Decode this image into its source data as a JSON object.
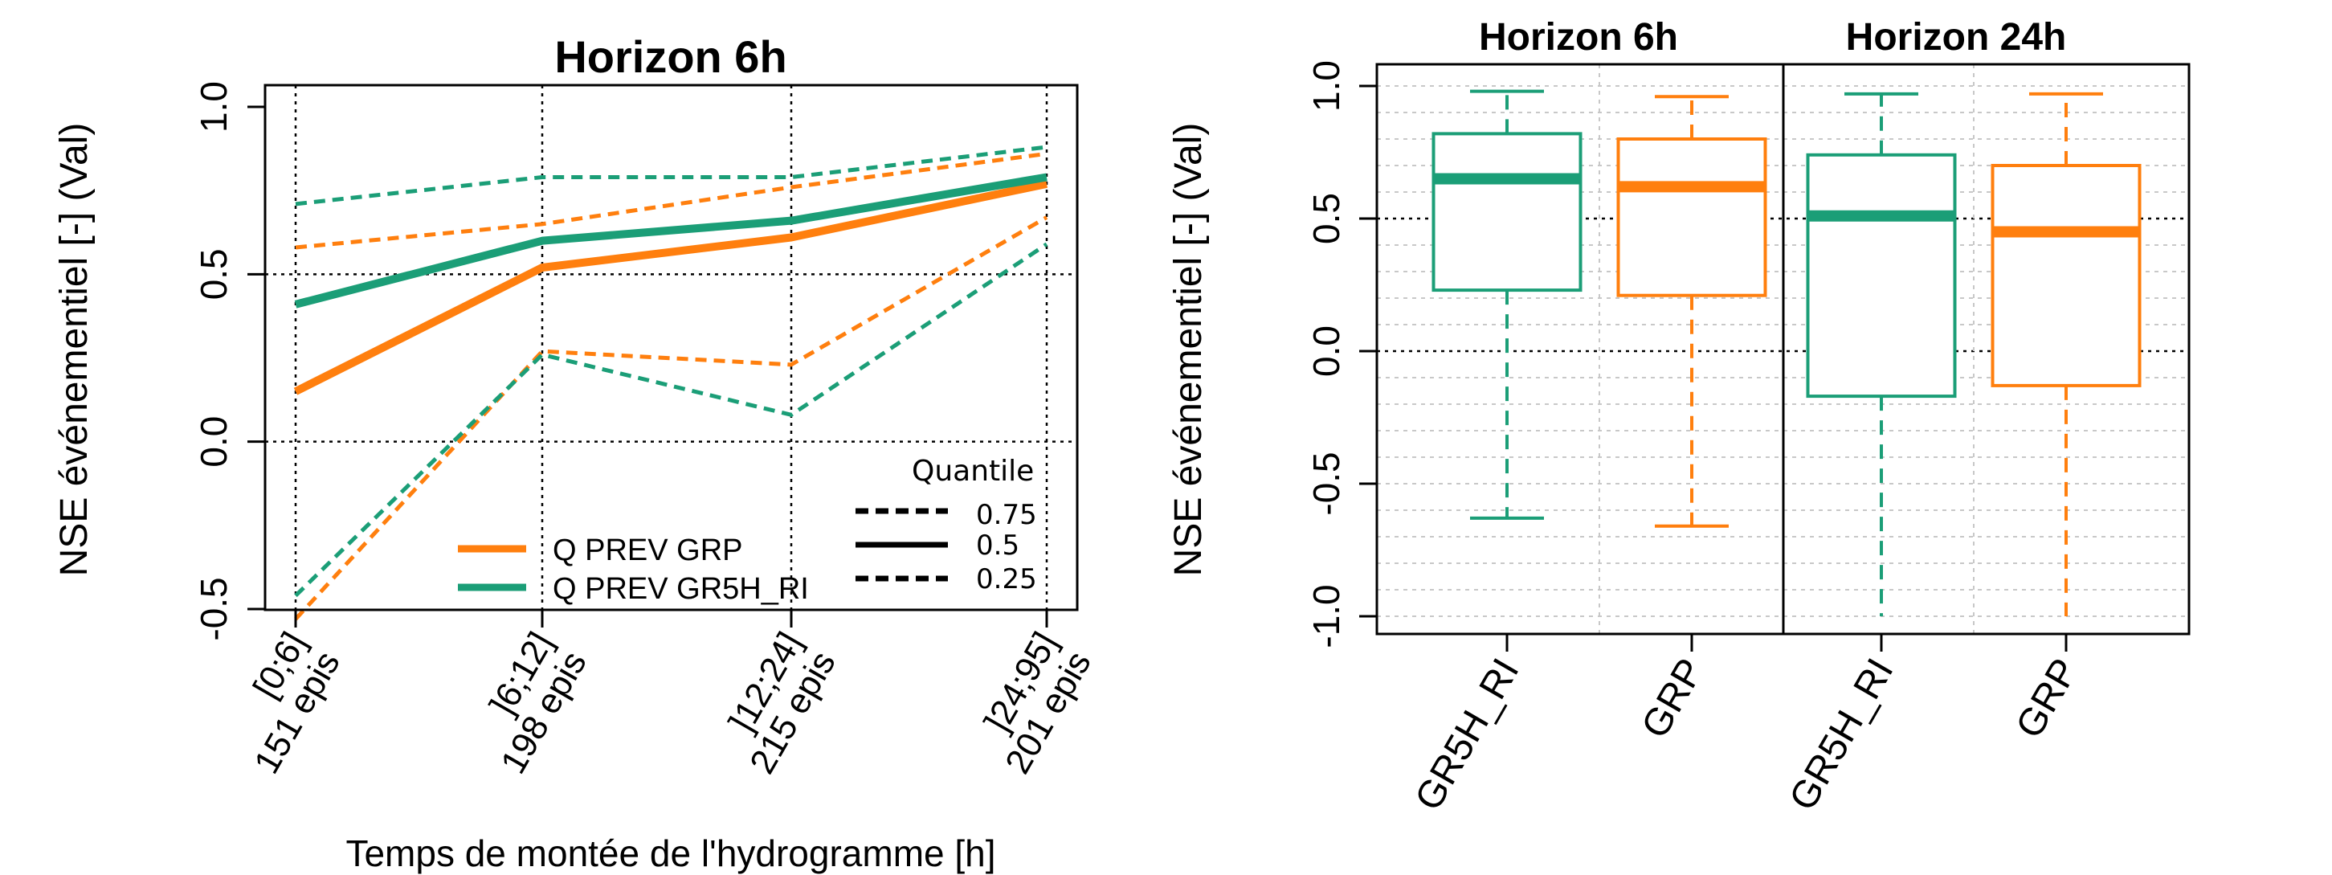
{
  "chart_data": [
    {
      "type": "line",
      "title": "Horizon 6h",
      "xlabel": "Temps de montée de l'hydrogramme [h]",
      "ylabel": "NSE événementiel [-] (Val)",
      "ylim": [
        -0.5,
        1.0
      ],
      "yticks": [
        "-0.5",
        "0.0",
        "0.5",
        "1.0"
      ],
      "grid": "dotted",
      "categories": [
        {
          "range": "[0;6]",
          "count": "151 epis"
        },
        {
          "range": "]6;12]",
          "count": "198 epis"
        },
        {
          "range": "]12;24]",
          "count": "215 epis"
        },
        {
          "range": "]24;95]",
          "count": "201 epis"
        }
      ],
      "series": [
        {
          "name": "Q PREV GRP",
          "color": "#ff7f0e",
          "q50": [
            0.15,
            0.52,
            0.61,
            0.77
          ],
          "q75": [
            0.58,
            0.65,
            0.76,
            0.86
          ],
          "q25": [
            -0.53,
            0.27,
            0.23,
            0.67
          ]
        },
        {
          "name": "Q PREV GR5H_RI",
          "color": "#1b9e77",
          "q50": [
            0.41,
            0.6,
            0.66,
            0.79
          ],
          "q75": [
            0.71,
            0.79,
            0.79,
            0.88
          ],
          "q25": [
            -0.46,
            0.26,
            0.08,
            0.59
          ]
        }
      ],
      "legend": {
        "placement": "bottom-right",
        "quantile_title": "Quantile",
        "quantiles": [
          "0.75",
          "0.5",
          "0.25"
        ]
      }
    },
    {
      "type": "boxplot",
      "ylabel": "NSE événementiel [-] (Val)",
      "ylim": [
        -1.0,
        1.0
      ],
      "yticks": [
        "-1.0",
        "-0.5",
        "0.0",
        "0.5",
        "1.0"
      ],
      "grid": "dotted",
      "panels": [
        {
          "title": "Horizon 6h",
          "boxes": [
            {
              "label": "GR5H_RI",
              "color": "#1b9e77",
              "min": -0.63,
              "q1": 0.23,
              "median": 0.65,
              "q3": 0.82,
              "max": 0.98
            },
            {
              "label": "GRP",
              "color": "#ff7f0e",
              "min": -0.66,
              "q1": 0.21,
              "median": 0.62,
              "q3": 0.8,
              "max": 0.96
            }
          ]
        },
        {
          "title": "Horizon 24h",
          "boxes": [
            {
              "label": "GR5H_RI",
              "color": "#1b9e77",
              "min": -1.0,
              "q1": -0.17,
              "median": 0.51,
              "q3": 0.74,
              "max": 0.97
            },
            {
              "label": "GRP",
              "color": "#ff7f0e",
              "min": -1.0,
              "q1": -0.13,
              "median": 0.45,
              "q3": 0.7,
              "max": 0.97
            }
          ]
        }
      ]
    }
  ]
}
